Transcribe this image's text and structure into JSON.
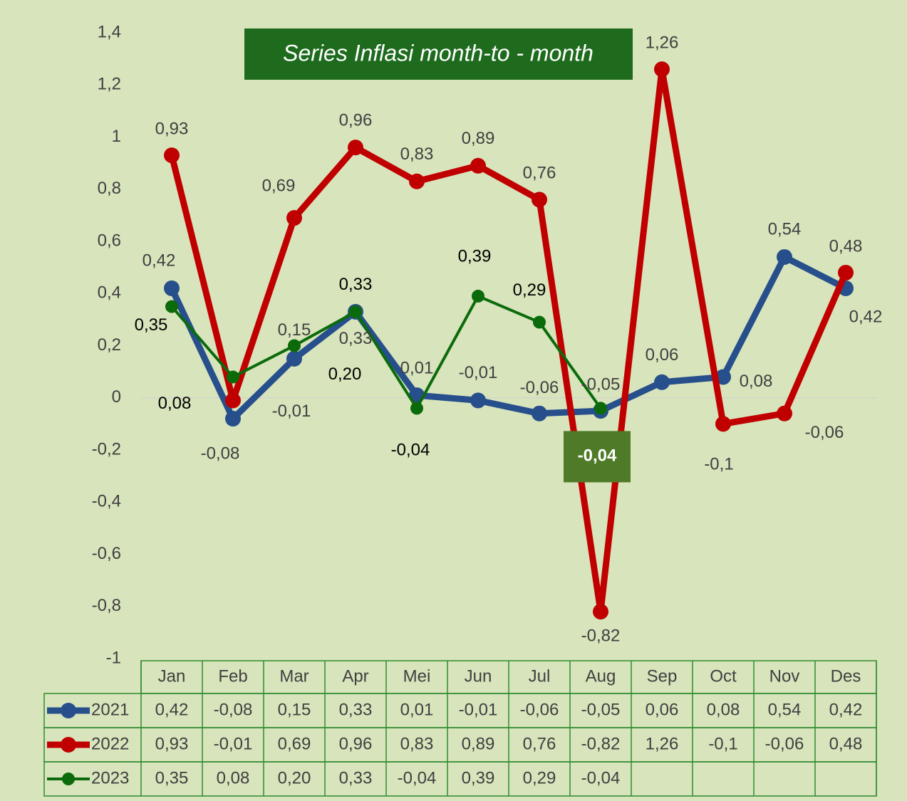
{
  "chart_data": {
    "type": "line",
    "title": "Series Inflasi month-to - month",
    "categories": [
      "Jan",
      "Feb",
      "Mar",
      "Apr",
      "Mei",
      "Jun",
      "Jul",
      "Aug",
      "Sep",
      "Oct",
      "Nov",
      "Des"
    ],
    "series": [
      {
        "name": "2021",
        "color": "#264f8c",
        "values": [
          0.42,
          -0.08,
          0.15,
          0.33,
          0.01,
          -0.01,
          -0.06,
          -0.05,
          0.06,
          0.08,
          0.54,
          0.42
        ],
        "value_labels": [
          "0,42",
          "-0,08",
          "0,15",
          "0,33",
          "0,01",
          "-0,01",
          "-0,06",
          "-0,05",
          "0,06",
          "0,08",
          "0,54",
          "0,42"
        ]
      },
      {
        "name": "2022",
        "color": "#c00000",
        "values": [
          0.93,
          -0.01,
          0.69,
          0.96,
          0.83,
          0.89,
          0.76,
          -0.82,
          1.26,
          -0.1,
          -0.06,
          0.48
        ],
        "value_labels": [
          "0,93",
          "-0,01",
          "0,69",
          "0,96",
          "0,83",
          "0,89",
          "0,76",
          "-0,82",
          "1,26",
          "-0,1",
          "-0,06",
          "0,48"
        ]
      },
      {
        "name": "2023",
        "color": "#0b6b0b",
        "values": [
          0.35,
          0.08,
          0.2,
          0.33,
          -0.04,
          0.39,
          0.29,
          -0.04,
          null,
          null,
          null,
          null
        ],
        "value_labels": [
          "0,35",
          "0,08",
          "0,20",
          "0,33",
          "-0,04",
          "0,39",
          "0,29",
          "-0,04",
          null,
          null,
          null,
          null
        ]
      }
    ],
    "ylim": [
      -1,
      1.4
    ],
    "yticks": [
      {
        "value": 1.4,
        "label": "1,4"
      },
      {
        "value": 1.2,
        "label": "1,2"
      },
      1,
      {
        "value": 0.8,
        "label": "0,8"
      },
      {
        "value": 0.6,
        "label": "0,6"
      },
      {
        "value": 0.4,
        "label": "0,4"
      },
      {
        "value": 0.2,
        "label": "0,2"
      },
      0,
      {
        "value": -0.2,
        "label": "-0,2"
      },
      {
        "value": -0.4,
        "label": "-0,4"
      },
      {
        "value": -0.6,
        "label": "-0,6"
      },
      {
        "value": -0.8,
        "label": "-0,8"
      },
      -1
    ],
    "grid": false
  }
}
